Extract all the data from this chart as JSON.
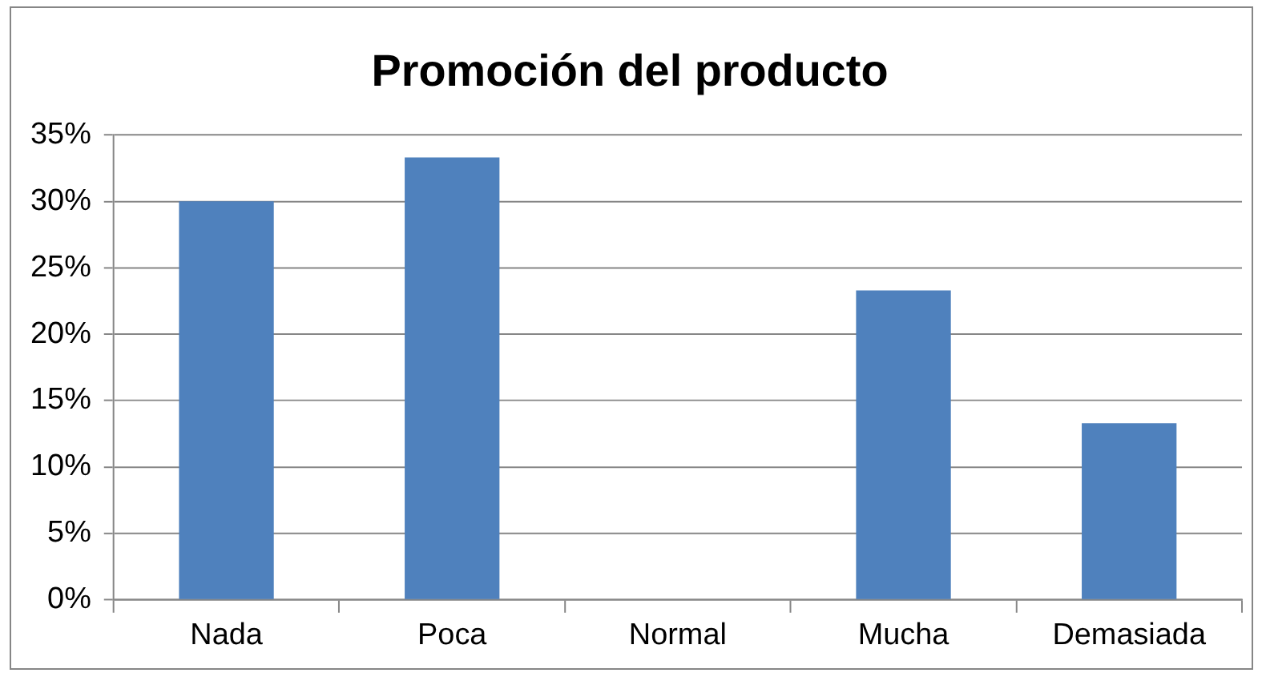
{
  "chart_data": {
    "type": "bar",
    "title": "Promoción del producto",
    "categories": [
      "Nada",
      "Poca",
      "Normal",
      "Mucha",
      "Demasiada"
    ],
    "values": [
      30,
      33.3,
      0,
      23.3,
      13.3
    ],
    "color": "#4f81bd",
    "ylim": [
      0,
      35
    ],
    "yticks": [
      {
        "value": 0,
        "label": "0%"
      },
      {
        "value": 5,
        "label": "5%"
      },
      {
        "value": 10,
        "label": "10%"
      },
      {
        "value": 15,
        "label": "15%"
      },
      {
        "value": 20,
        "label": "20%"
      },
      {
        "value": 25,
        "label": "25%"
      },
      {
        "value": 30,
        "label": "30%"
      },
      {
        "value": 35,
        "label": "35%"
      }
    ],
    "grid": "y",
    "legend": false
  }
}
